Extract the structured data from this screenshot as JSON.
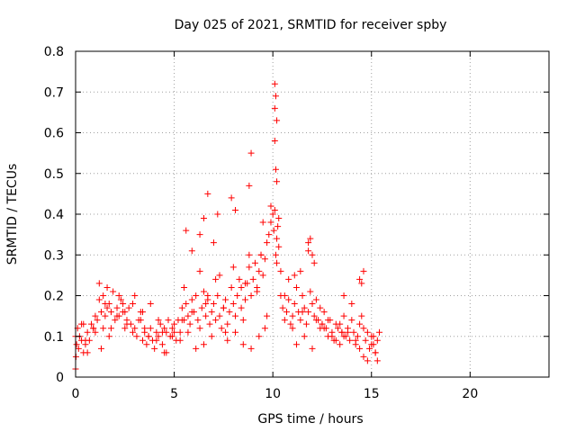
{
  "chart_data": {
    "type": "scatter",
    "title": "Day 025 of 2021, SRMTID for receiver spby",
    "xlabel": "GPS time / hours",
    "ylabel": "SRMTID / TECUs",
    "xlim": [
      0,
      24
    ],
    "ylim": [
      0,
      0.8
    ],
    "xticks": [
      0,
      5,
      10,
      15,
      20
    ],
    "xtick_labels": [
      "0",
      "5",
      "10",
      "15",
      "20"
    ],
    "yticks": [
      0,
      0.1,
      0.2,
      0.3,
      0.4,
      0.5,
      0.6,
      0.7,
      0.8
    ],
    "ytick_labels": [
      "0",
      "0.1",
      "0.2",
      "0.3",
      "0.4",
      "0.5",
      "0.6",
      "0.7",
      "0.8"
    ],
    "grid": true,
    "marker": "+",
    "color": "#ff0000",
    "series": [
      {
        "name": "SRMTID",
        "x": [
          0.0,
          0.05,
          0.1,
          0.15,
          0.2,
          0.3,
          0.4,
          0.5,
          0.6,
          0.7,
          0.8,
          0.9,
          1.0,
          1.1,
          1.2,
          1.3,
          1.4,
          1.5,
          1.6,
          1.7,
          1.8,
          1.9,
          2.0,
          2.1,
          2.2,
          2.3,
          2.4,
          2.5,
          2.6,
          2.7,
          2.8,
          2.9,
          3.0,
          3.1,
          3.2,
          3.3,
          3.4,
          3.5,
          3.6,
          3.7,
          3.8,
          3.9,
          4.0,
          4.1,
          4.2,
          4.3,
          4.4,
          4.5,
          4.6,
          4.7,
          4.8,
          4.9,
          5.0,
          5.1,
          5.2,
          5.3,
          5.4,
          5.5,
          5.6,
          5.7,
          5.8,
          5.9,
          6.0,
          6.1,
          6.2,
          6.3,
          6.4,
          6.5,
          6.6,
          6.7,
          6.8,
          6.9,
          7.0,
          7.1,
          7.2,
          7.3,
          7.4,
          7.5,
          7.6,
          7.7,
          7.8,
          7.9,
          8.0,
          8.1,
          8.2,
          8.3,
          8.4,
          8.5,
          8.6,
          8.7,
          8.8,
          8.9,
          9.0,
          9.1,
          9.2,
          9.3,
          9.4,
          9.5,
          9.6,
          9.7,
          9.8,
          9.9,
          10.0,
          10.05,
          10.1,
          10.15,
          10.2,
          10.25,
          10.3,
          10.4,
          10.5,
          10.6,
          10.7,
          10.8,
          10.9,
          11.0,
          11.1,
          11.2,
          11.3,
          11.4,
          11.5,
          11.6,
          11.7,
          11.8,
          11.9,
          12.0,
          12.1,
          12.2,
          12.3,
          12.4,
          12.5,
          12.6,
          12.7,
          12.8,
          12.9,
          13.0,
          13.1,
          13.2,
          13.3,
          13.4,
          13.5,
          13.6,
          13.7,
          13.8,
          13.9,
          14.0,
          14.1,
          14.2,
          14.3,
          14.4,
          14.5,
          14.6,
          14.7,
          14.8,
          14.9,
          15.0,
          15.1,
          15.2,
          15.3,
          15.4,
          0.0,
          0.02,
          0.3,
          0.6,
          1.0,
          1.2,
          1.4,
          1.6,
          1.8,
          2.2,
          2.6,
          3.0,
          3.4,
          3.8,
          4.2,
          4.6,
          5.0,
          5.5,
          5.9,
          6.3,
          6.7,
          7.1,
          7.6,
          8.0,
          8.4,
          8.8,
          9.2,
          9.6,
          10.4,
          10.8,
          11.2,
          11.6,
          12.0,
          12.4,
          12.8,
          13.2,
          13.6,
          14.0,
          14.4,
          14.8,
          15.2,
          0.5,
          0.9,
          1.3,
          1.7,
          2.1,
          2.5,
          2.9,
          3.3,
          3.7,
          4.1,
          4.5,
          4.9,
          5.3,
          5.7,
          6.1,
          6.5,
          6.9,
          7.3,
          7.7,
          8.1,
          8.5,
          8.9,
          9.3,
          9.7,
          10.6,
          11.0,
          11.4,
          11.8,
          12.2,
          12.6,
          13.0,
          13.4,
          13.8,
          14.2,
          14.6,
          15.0,
          15.3,
          0.4,
          1.5,
          2.4,
          3.5,
          4.4,
          5.4,
          6.6,
          7.5,
          8.6,
          9.4,
          10.2,
          11.5,
          12.5,
          13.5,
          14.5,
          15.1,
          8.9,
          10.1,
          10.15,
          10.2,
          10.1,
          10.15,
          10.2,
          10.1,
          6.7,
          5.6,
          6.3,
          7.0,
          8.1,
          8.8,
          9.5,
          11.9,
          12.0,
          14.6,
          14.4,
          5.9,
          6.5,
          7.2,
          7.9,
          9.9,
          10.3,
          11.1,
          11.8,
          12.1,
          13.6
        ],
        "y": [
          0.02,
          0.08,
          0.12,
          0.07,
          0.1,
          0.09,
          0.06,
          0.08,
          0.11,
          0.09,
          0.13,
          0.12,
          0.15,
          0.14,
          0.19,
          0.16,
          0.12,
          0.15,
          0.17,
          0.18,
          0.16,
          0.21,
          0.14,
          0.17,
          0.15,
          0.19,
          0.18,
          0.16,
          0.14,
          0.17,
          0.13,
          0.11,
          0.12,
          0.1,
          0.14,
          0.16,
          0.09,
          0.11,
          0.08,
          0.1,
          0.12,
          0.09,
          0.07,
          0.11,
          0.1,
          0.13,
          0.08,
          0.12,
          0.11,
          0.14,
          0.1,
          0.12,
          0.13,
          0.09,
          0.14,
          0.11,
          0.17,
          0.22,
          0.18,
          0.15,
          0.13,
          0.19,
          0.16,
          0.2,
          0.14,
          0.12,
          0.17,
          0.21,
          0.15,
          0.19,
          0.13,
          0.16,
          0.18,
          0.14,
          0.2,
          0.15,
          0.12,
          0.17,
          0.19,
          0.13,
          0.16,
          0.22,
          0.18,
          0.15,
          0.2,
          0.24,
          0.17,
          0.14,
          0.19,
          0.23,
          0.27,
          0.2,
          0.24,
          0.28,
          0.22,
          0.26,
          0.3,
          0.25,
          0.29,
          0.33,
          0.35,
          0.38,
          0.4,
          0.36,
          0.41,
          0.3,
          0.34,
          0.37,
          0.32,
          0.2,
          0.17,
          0.14,
          0.16,
          0.19,
          0.13,
          0.15,
          0.18,
          0.22,
          0.16,
          0.14,
          0.2,
          0.17,
          0.13,
          0.16,
          0.21,
          0.18,
          0.15,
          0.19,
          0.14,
          0.17,
          0.13,
          0.16,
          0.12,
          0.1,
          0.14,
          0.11,
          0.09,
          0.13,
          0.12,
          0.08,
          0.11,
          0.15,
          0.1,
          0.12,
          0.09,
          0.14,
          0.11,
          0.08,
          0.1,
          0.13,
          0.15,
          0.12,
          0.09,
          0.11,
          0.07,
          0.1,
          0.08,
          0.06,
          0.09,
          0.11,
          0.1,
          0.05,
          0.13,
          0.06,
          0.11,
          0.23,
          0.2,
          0.22,
          0.12,
          0.2,
          0.13,
          0.2,
          0.16,
          0.18,
          0.14,
          0.06,
          0.11,
          0.14,
          0.16,
          0.26,
          0.2,
          0.24,
          0.11,
          0.27,
          0.22,
          0.3,
          0.21,
          0.12,
          0.26,
          0.24,
          0.08,
          0.1,
          0.07,
          0.12,
          0.14,
          0.09,
          0.1,
          0.18,
          0.07,
          0.04,
          0.06,
          0.09,
          0.12,
          0.07,
          0.1,
          0.15,
          0.12,
          0.18,
          0.14,
          0.1,
          0.09,
          0.06,
          0.1,
          0.09,
          0.11,
          0.07,
          0.08,
          0.1,
          0.25,
          0.09,
          0.11,
          0.08,
          0.07,
          0.1,
          0.15,
          0.2,
          0.12,
          0.26,
          0.31,
          0.14,
          0.12,
          0.1,
          0.13,
          0.11,
          0.09,
          0.05,
          0.08,
          0.04,
          0.13,
          0.18,
          0.16,
          0.12,
          0.11,
          0.14,
          0.18,
          0.17,
          0.23,
          0.3,
          0.28,
          0.16,
          0.13,
          0.11,
          0.23,
          0.1,
          0.55,
          0.72,
          0.69,
          0.63,
          0.58,
          0.51,
          0.48,
          0.66,
          0.45,
          0.36,
          0.35,
          0.33,
          0.41,
          0.47,
          0.38,
          0.34,
          0.3,
          0.26,
          0.24,
          0.31,
          0.39,
          0.4,
          0.44,
          0.42,
          0.39,
          0.25,
          0.33,
          0.28,
          0.2
        ]
      }
    ]
  }
}
